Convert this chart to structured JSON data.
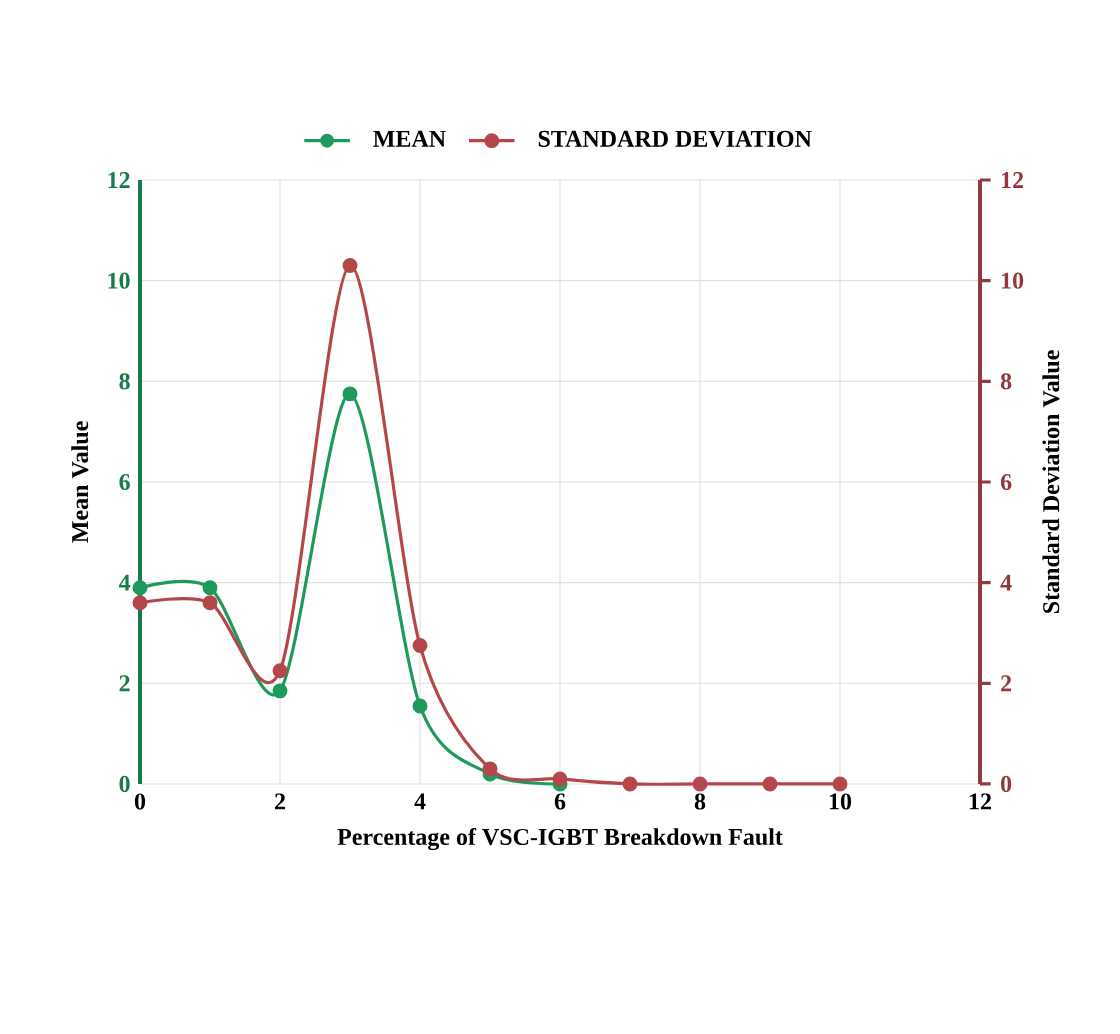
{
  "chart_data": {
    "type": "line",
    "xlabel": "Percentage of VSC-IGBT Breakdown Fault",
    "ylabel": "Mean Value",
    "y2label": "Standard Deviation  Value",
    "x": [
      0,
      1,
      2,
      3,
      4,
      5,
      6,
      7,
      8,
      9,
      10
    ],
    "series": [
      {
        "name": "MEAN",
        "color": "#1e9a5c",
        "values": [
          3.9,
          3.9,
          1.85,
          7.75,
          1.55,
          0.2,
          0,
          null,
          null,
          null,
          null
        ]
      },
      {
        "name": "STANDARD DEVIATION",
        "color": "#b5474b",
        "axis": "y2",
        "values": [
          3.6,
          3.6,
          2.25,
          10.3,
          2.75,
          0.3,
          0.1,
          0,
          0,
          0,
          0
        ]
      }
    ],
    "xlim": [
      0,
      12
    ],
    "xticks": [
      0,
      2,
      4,
      6,
      8,
      10,
      12
    ],
    "ylim": [
      0,
      12
    ],
    "yticks": [
      0,
      2,
      4,
      6,
      8,
      10,
      12
    ],
    "y2lim": [
      0,
      12
    ],
    "y2ticks": [
      0,
      2,
      4,
      6,
      8,
      10,
      12
    ],
    "grid": true,
    "legend": "top",
    "marker": "circle",
    "line_style": "solid"
  }
}
